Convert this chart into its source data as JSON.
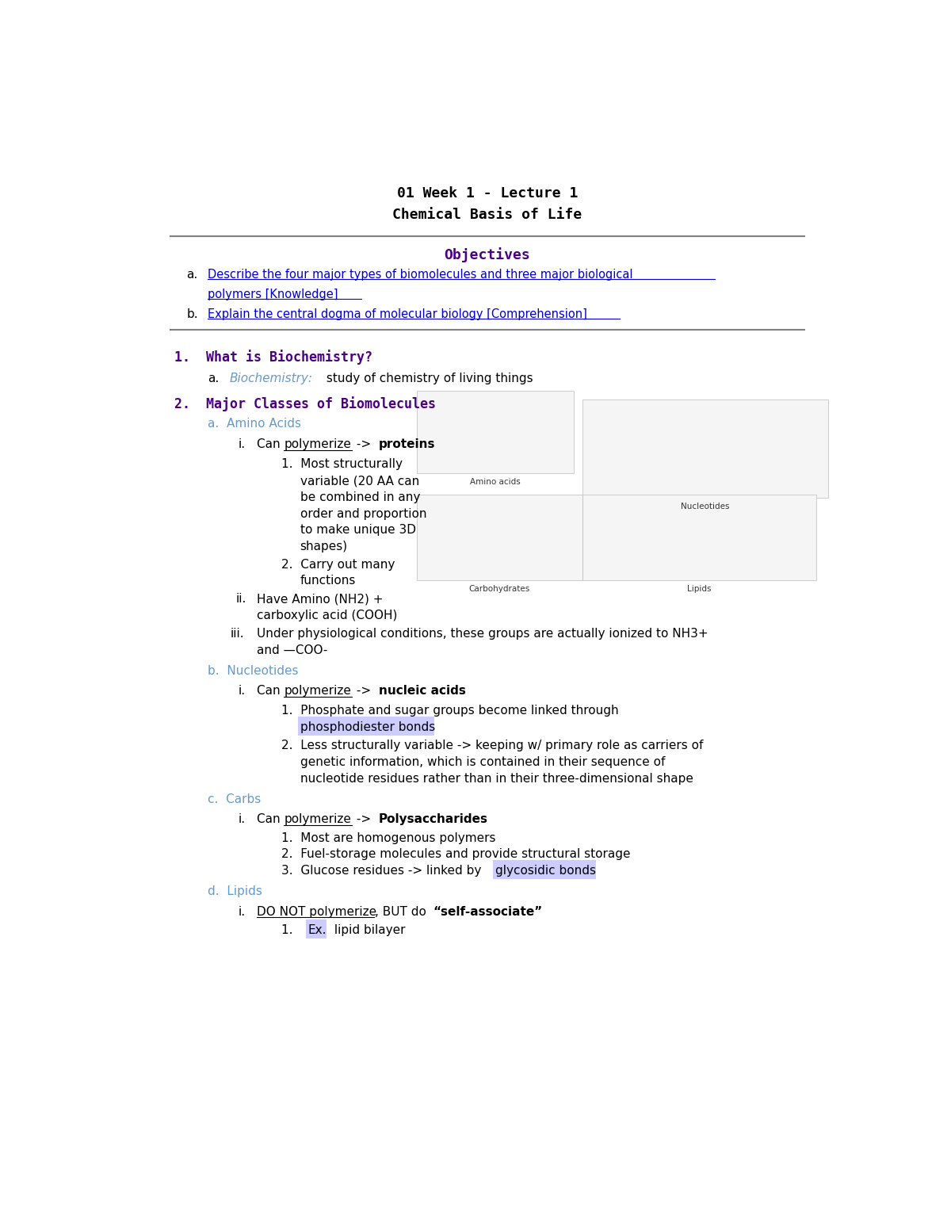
{
  "bg_color": "#ffffff",
  "title_line1": "01 Week 1 - Lecture 1",
  "title_line2": "Chemical Basis of Life",
  "title_color": "#000000",
  "title_fontsize": 13,
  "hr_color": "#808080",
  "objectives_title": "Objectives",
  "objectives_color": "#4b0082",
  "objectives_fontsize": 13,
  "obj_a_line1": "Describe the four major types of biomolecules and three major biological",
  "obj_a_line2": "polymers [Knowledge]",
  "obj_b": "Explain the central dogma of molecular biology [Comprehension]",
  "obj_link_color": "#0000cc",
  "section1_color": "#4b0082",
  "section1_fontsize": 12,
  "s1_a_prefix_color": "#6699cc",
  "section2_color": "#4b0082",
  "section2_fontsize": 12,
  "body_color": "#000000",
  "body_fontsize": 11,
  "highlight_color": "#ccccff",
  "note_color": "#6699cc"
}
